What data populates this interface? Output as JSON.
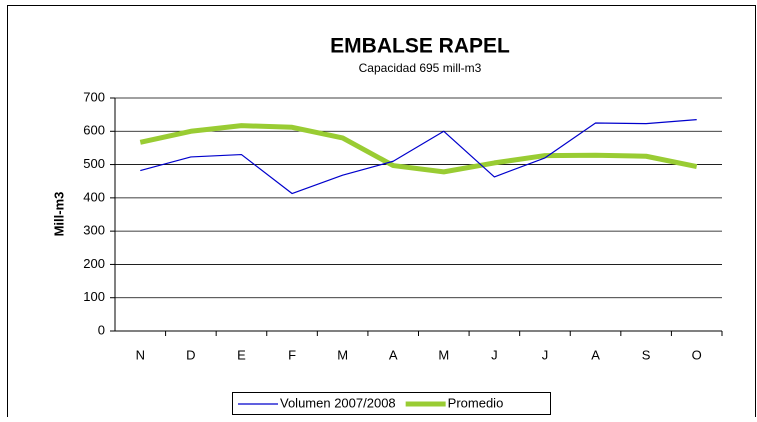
{
  "chart_data": {
    "type": "line",
    "title": "EMBALSE RAPEL",
    "subtitle": "Capacidad 695 mill-m3",
    "y_label": "Mill-m3",
    "categories": [
      "N",
      "D",
      "E",
      "F",
      "M",
      "A",
      "M",
      "J",
      "J",
      "A",
      "S",
      "O"
    ],
    "series": [
      {
        "name": "Volumen  2007/2008",
        "color": "#0000cc",
        "width": 1.2,
        "values": [
          482,
          523,
          530,
          413,
          468,
          510,
          600,
          463,
          520,
          625,
          623,
          635
        ]
      },
      {
        "name": "Promedio",
        "color": "#99cc33",
        "width": 5,
        "values": [
          567,
          600,
          617,
          612,
          580,
          497,
          478,
          505,
          527,
          528,
          525,
          494
        ]
      }
    ],
    "ylim": [
      0,
      700
    ],
    "yticks": [
      0,
      100,
      200,
      300,
      400,
      500,
      600,
      700
    ],
    "grid": true,
    "legend": "bottom"
  }
}
